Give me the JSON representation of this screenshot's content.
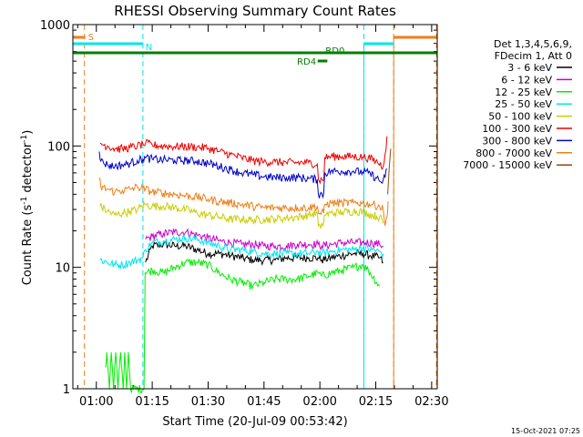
{
  "chart_data": {
    "type": "line",
    "title": "RHESSI Observing Summary Count Rates",
    "xlabel": "Start Time (20-Jul-09 00:53:42)",
    "ylabel_main": "Count Rate (s",
    "ylabel_sup1": "-1",
    "ylabel_mid": " detector",
    "ylabel_sup2": "-1",
    "ylabel_end": ")",
    "yscale": "log",
    "ylim": [
      1,
      1000
    ],
    "xlim_minutes": [
      53.7,
      151.5
    ],
    "x_ticks": [
      {
        "m": 60,
        "label": "01:00"
      },
      {
        "m": 75,
        "label": "01:15"
      },
      {
        "m": 90,
        "label": "01:30"
      },
      {
        "m": 105,
        "label": "01:45"
      },
      {
        "m": 120,
        "label": "02:00"
      },
      {
        "m": 135,
        "label": "02:15"
      },
      {
        "m": 150,
        "label": "02:30"
      }
    ],
    "y_ticks": [
      {
        "v": 1,
        "label": "1"
      },
      {
        "v": 10,
        "label": "10"
      },
      {
        "v": 100,
        "label": "100"
      },
      {
        "v": 1000,
        "label": "1000"
      }
    ],
    "legend_header": [
      "Det 1,3,4,5,6,9,",
      "FDecim 1, Att 0"
    ],
    "date_stamp": "15-Oct-2021 07:25",
    "flags": {
      "saa_label": "S",
      "night_label": "N",
      "rd0_label": "RD0",
      "rd4_label": "RD4",
      "saa_color": "#ee7f1a",
      "night_color": "#00e5ee",
      "decim_color": "#007f00",
      "saa_intervals": [
        [
          53.7,
          57.0
        ],
        [
          139.8,
          151.5
        ]
      ],
      "night_intervals": [
        [
          53.7,
          72.5
        ],
        [
          131.8,
          139.8
        ]
      ],
      "decim_interval": [
        53.7,
        151.5
      ],
      "rd4_interval": [
        119.4,
        122.0
      ],
      "saa_lines": [
        56.8,
        139.8,
        151.3
      ],
      "night_lines": [
        72.5,
        131.8
      ]
    },
    "series": [
      {
        "name": "3 - 6 keV",
        "color": "#000000",
        "points": [
          [
            73.2,
            11
          ],
          [
            75,
            15
          ],
          [
            78,
            15.5
          ],
          [
            81,
            15
          ],
          [
            84,
            15
          ],
          [
            87,
            14
          ],
          [
            90,
            13
          ],
          [
            93,
            13
          ],
          [
            96,
            12.5
          ],
          [
            99,
            12
          ],
          [
            102,
            11.5
          ],
          [
            105,
            11.5
          ],
          [
            108,
            11.5
          ],
          [
            111,
            12
          ],
          [
            114,
            12
          ],
          [
            117,
            12
          ],
          [
            119.5,
            12
          ],
          [
            120.5,
            11.5
          ],
          [
            123,
            12
          ],
          [
            126,
            12.5
          ],
          [
            129,
            13
          ],
          [
            131.5,
            13
          ],
          [
            133.5,
            12.5
          ],
          [
            136,
            12
          ],
          [
            137,
            11
          ]
        ]
      },
      {
        "name": "6 - 12 keV",
        "color": "#cc00cc",
        "points": [
          [
            73.2,
            17
          ],
          [
            75,
            18
          ],
          [
            78,
            19
          ],
          [
            81,
            19.5
          ],
          [
            84,
            19.5
          ],
          [
            87,
            18.5
          ],
          [
            90,
            17.5
          ],
          [
            93,
            16.5
          ],
          [
            96,
            16
          ],
          [
            99,
            15.5
          ],
          [
            102,
            15.5
          ],
          [
            105,
            15
          ],
          [
            108,
            15
          ],
          [
            111,
            15
          ],
          [
            114,
            15.5
          ],
          [
            117,
            15.5
          ],
          [
            119.5,
            15.5
          ],
          [
            120.5,
            15
          ],
          [
            123,
            15.5
          ],
          [
            126,
            16
          ],
          [
            129,
            16
          ],
          [
            131.5,
            16
          ],
          [
            134,
            16
          ],
          [
            136,
            15.5
          ],
          [
            137,
            15
          ]
        ]
      },
      {
        "name": "12 - 25 keV",
        "color": "#00ee00",
        "points": [
          [
            62.5,
            1.5
          ],
          [
            62.8,
            2
          ],
          [
            63.5,
            1
          ],
          [
            64,
            2
          ],
          [
            64.6,
            1
          ],
          [
            65.2,
            2
          ],
          [
            65.8,
            1
          ],
          [
            66.5,
            2
          ],
          [
            67.2,
            1
          ],
          [
            67.6,
            2
          ],
          [
            68.1,
            1
          ],
          [
            68.6,
            2
          ],
          [
            69.2,
            1
          ],
          [
            72.8,
            1
          ],
          [
            73.1,
            9
          ],
          [
            75,
            9.5
          ],
          [
            78,
            9
          ],
          [
            81,
            10
          ],
          [
            84,
            11
          ],
          [
            87,
            11
          ],
          [
            90,
            10.5
          ],
          [
            93,
            9
          ],
          [
            96,
            8
          ],
          [
            99,
            7.5
          ],
          [
            102,
            7
          ],
          [
            105,
            7.5
          ],
          [
            108,
            8
          ],
          [
            111,
            8
          ],
          [
            114,
            8
          ],
          [
            117,
            8.5
          ],
          [
            119.5,
            9
          ],
          [
            120.5,
            8.5
          ],
          [
            123,
            9
          ],
          [
            126,
            9.5
          ],
          [
            129,
            10
          ],
          [
            131.5,
            10.5
          ],
          [
            133,
            9.5
          ],
          [
            136,
            7
          ]
        ]
      },
      {
        "name": "25 - 50 keV",
        "color": "#00e5ee",
        "points": [
          [
            61,
            11.5
          ],
          [
            63,
            11
          ],
          [
            65,
            10.5
          ],
          [
            67,
            10.5
          ],
          [
            69,
            11
          ],
          [
            71,
            11.5
          ],
          [
            72.5,
            12
          ],
          [
            73.2,
            14
          ],
          [
            75,
            16
          ],
          [
            78,
            16.5
          ],
          [
            81,
            17
          ],
          [
            84,
            17.5
          ],
          [
            87,
            17
          ],
          [
            90,
            16
          ],
          [
            93,
            15
          ],
          [
            96,
            14
          ],
          [
            99,
            14
          ],
          [
            102,
            13.5
          ],
          [
            105,
            13
          ],
          [
            108,
            13
          ],
          [
            111,
            13
          ],
          [
            114,
            13
          ],
          [
            117,
            13
          ],
          [
            119.5,
            13.5
          ],
          [
            120.5,
            13
          ],
          [
            123,
            13.5
          ],
          [
            126,
            14
          ],
          [
            129,
            14
          ],
          [
            131.5,
            14.5
          ],
          [
            134,
            14
          ],
          [
            136,
            13.5
          ],
          [
            137,
            13
          ]
        ]
      },
      {
        "name": "50 - 100 keV",
        "color": "#cccc00",
        "points": [
          [
            61,
            32
          ],
          [
            63,
            29
          ],
          [
            65,
            27
          ],
          [
            67,
            28
          ],
          [
            69,
            29
          ],
          [
            71,
            30
          ],
          [
            73,
            33
          ],
          [
            75,
            32
          ],
          [
            78,
            32
          ],
          [
            81,
            31
          ],
          [
            84,
            30
          ],
          [
            87,
            28
          ],
          [
            90,
            27
          ],
          [
            93,
            26
          ],
          [
            96,
            25
          ],
          [
            99,
            25
          ],
          [
            102,
            24.5
          ],
          [
            105,
            25
          ],
          [
            108,
            25
          ],
          [
            111,
            25.5
          ],
          [
            114,
            26
          ],
          [
            117,
            27
          ],
          [
            119.3,
            28
          ],
          [
            119.6,
            22
          ],
          [
            120.2,
            21
          ],
          [
            120.8,
            22
          ],
          [
            121.2,
            27
          ],
          [
            123,
            28
          ],
          [
            126,
            28.5
          ],
          [
            129,
            29
          ],
          [
            131.5,
            29
          ],
          [
            133,
            27.5
          ],
          [
            136,
            26
          ],
          [
            137,
            23
          ]
        ]
      },
      {
        "name": "100 - 300 keV",
        "color": "#ee0000",
        "points": [
          [
            61,
            105
          ],
          [
            63,
            100
          ],
          [
            65,
            95
          ],
          [
            67,
            95
          ],
          [
            69,
            97
          ],
          [
            71,
            100
          ],
          [
            72.5,
            103
          ],
          [
            73.2,
            105
          ],
          [
            75,
            102
          ],
          [
            78,
            100
          ],
          [
            81,
            99
          ],
          [
            84,
            99
          ],
          [
            87,
            98
          ],
          [
            90,
            96
          ],
          [
            93,
            90
          ],
          [
            96,
            85
          ],
          [
            99,
            80
          ],
          [
            102,
            76
          ],
          [
            105,
            74
          ],
          [
            108,
            74
          ],
          [
            111,
            73
          ],
          [
            114,
            73
          ],
          [
            117,
            73
          ],
          [
            119.3,
            71
          ],
          [
            119.6,
            53
          ],
          [
            121,
            52
          ],
          [
            121.3,
            80
          ],
          [
            123,
            82
          ],
          [
            126,
            82
          ],
          [
            129,
            82
          ],
          [
            131.5,
            81
          ],
          [
            133,
            80
          ],
          [
            135,
            75
          ],
          [
            137,
            68
          ],
          [
            137.5,
            85
          ],
          [
            138,
            120
          ]
        ]
      },
      {
        "name": "300 - 800 keV",
        "color": "#0000cc",
        "points": [
          [
            60.8,
            90
          ],
          [
            61.2,
            75
          ],
          [
            63,
            70
          ],
          [
            65,
            68
          ],
          [
            67,
            70
          ],
          [
            69,
            72
          ],
          [
            71,
            76
          ],
          [
            72.5,
            78
          ],
          [
            73.2,
            80
          ],
          [
            75,
            78
          ],
          [
            78,
            77
          ],
          [
            81,
            76
          ],
          [
            84,
            76
          ],
          [
            87,
            75
          ],
          [
            90,
            72
          ],
          [
            93,
            68
          ],
          [
            96,
            64
          ],
          [
            99,
            60
          ],
          [
            102,
            58
          ],
          [
            105,
            56
          ],
          [
            108,
            55
          ],
          [
            111,
            55
          ],
          [
            114,
            55
          ],
          [
            117,
            54
          ],
          [
            119.3,
            53
          ],
          [
            119.6,
            40
          ],
          [
            121,
            40
          ],
          [
            121.3,
            60
          ],
          [
            123,
            62
          ],
          [
            126,
            62
          ],
          [
            129,
            62
          ],
          [
            131.5,
            61
          ],
          [
            133,
            60
          ],
          [
            135,
            55
          ],
          [
            136.5,
            50
          ],
          [
            137.5,
            55
          ],
          [
            138,
            65
          ]
        ]
      },
      {
        "name": "800 - 7000 keV",
        "color": "#ee7f1a",
        "points": [
          [
            60.8,
            55
          ],
          [
            61.2,
            46
          ],
          [
            63,
            44
          ],
          [
            65,
            42
          ],
          [
            67,
            43
          ],
          [
            69,
            44
          ],
          [
            71,
            46
          ],
          [
            72.5,
            45
          ],
          [
            73.2,
            44
          ],
          [
            75,
            42
          ],
          [
            78,
            41
          ],
          [
            81,
            40
          ],
          [
            84,
            39
          ],
          [
            87,
            38
          ],
          [
            90,
            36.5
          ],
          [
            93,
            35
          ],
          [
            96,
            34
          ],
          [
            99,
            33
          ],
          [
            102,
            32
          ],
          [
            105,
            31
          ],
          [
            108,
            31
          ],
          [
            111,
            31
          ],
          [
            114,
            31
          ],
          [
            117,
            31
          ],
          [
            119.3,
            32
          ],
          [
            119.6,
            28
          ],
          [
            121,
            28
          ],
          [
            121.3,
            33
          ],
          [
            123,
            34
          ],
          [
            126,
            34
          ],
          [
            129,
            34
          ],
          [
            131.5,
            34
          ],
          [
            134,
            33
          ],
          [
            136,
            32
          ],
          [
            137,
            30
          ],
          [
            137.5,
            22
          ],
          [
            138,
            26
          ],
          [
            138.3,
            35
          ]
        ]
      },
      {
        "name": "7000 - 15000 keV",
        "color": "#8b4a14",
        "points": [
          [
            138.2,
            40
          ],
          [
            138.6,
            65
          ],
          [
            139,
            95
          ]
        ]
      }
    ]
  }
}
